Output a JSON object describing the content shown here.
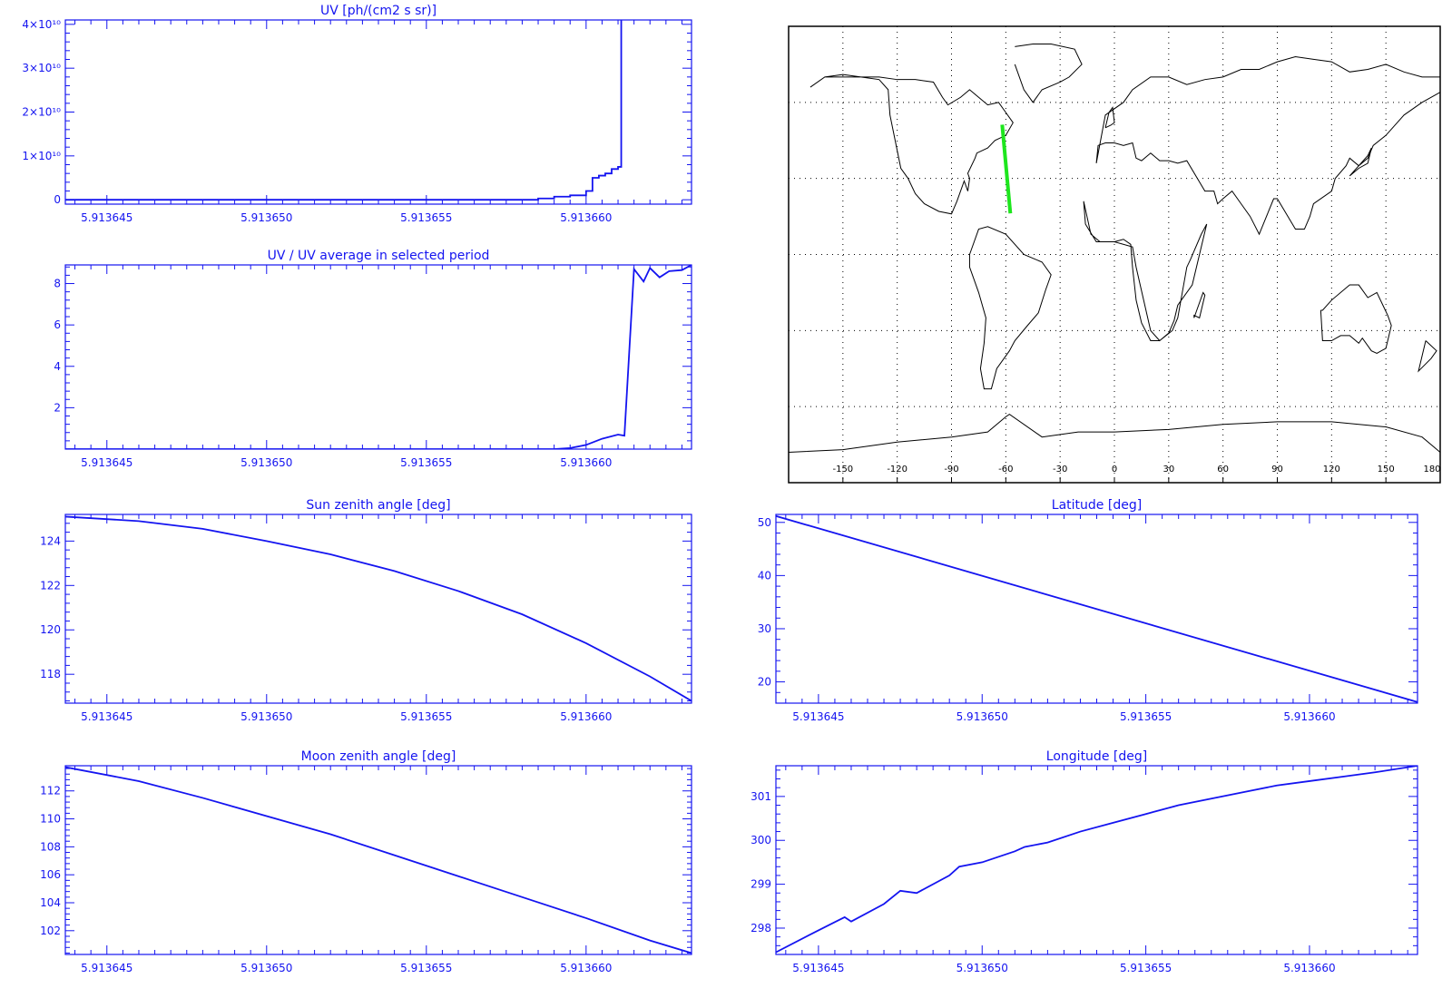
{
  "colors": {
    "plot": "#1414f0",
    "axes": "#1414f0",
    "map_line": "#000000",
    "track": "#1ee61e",
    "grid": "#000000"
  },
  "chart_data": [
    {
      "id": "uv",
      "type": "line",
      "title": "UV [ph/(cm2 s sr)]",
      "step": true,
      "xlim": [
        5.9136437,
        5.9136633
      ],
      "ylim": [
        -1000000000.0,
        41000000000.0
      ],
      "xticks": [
        5.913645,
        5.91365,
        5.913655,
        5.91366
      ],
      "xtick_labels": [
        "5.913645",
        "5.913650",
        "5.913655",
        "5.913660"
      ],
      "yticks": [
        0,
        10000000000.0,
        20000000000.0,
        30000000000.0,
        40000000000.0
      ],
      "ytick_labels": [
        "0",
        "1×10¹⁰",
        "2×10¹⁰",
        "3×10¹⁰",
        "4×10¹⁰"
      ],
      "x": [
        5.9136437,
        5.913658,
        5.9136585,
        5.913659,
        5.9136595,
        5.91366,
        5.9136602,
        5.9136604,
        5.9136606,
        5.9136608,
        5.913661,
        5.9136611,
        5.9136612
      ],
      "y": [
        0,
        0,
        300000000.0,
        700000000.0,
        1000000000.0,
        2000000000.0,
        5000000000.0,
        5500000000.0,
        6000000000.0,
        7000000000.0,
        7500000000.0,
        43000000000.0,
        43000000000.0
      ]
    },
    {
      "id": "uvratio",
      "type": "line",
      "title": "UV / UV average in selected period",
      "xlim": [
        5.9136437,
        5.9136633
      ],
      "ylim": [
        0,
        8.9
      ],
      "xticks": [
        5.913645,
        5.91365,
        5.913655,
        5.91366
      ],
      "xtick_labels": [
        "5.913645",
        "5.913650",
        "5.913655",
        "5.913660"
      ],
      "yticks": [
        2,
        4,
        6,
        8
      ],
      "ytick_labels": [
        "2",
        "4",
        "6",
        "8"
      ],
      "x": [
        5.9136437,
        5.913659,
        5.9136595,
        5.91366,
        5.9136605,
        5.913661,
        5.9136612,
        5.9136615,
        5.9136618,
        5.913662,
        5.9136623,
        5.9136626,
        5.913663,
        5.9136633
      ],
      "y": [
        0,
        0,
        0.05,
        0.2,
        0.5,
        0.7,
        0.65,
        8.7,
        8.1,
        8.75,
        8.3,
        8.6,
        8.65,
        8.9
      ]
    },
    {
      "id": "sun",
      "type": "line",
      "title": "Sun zenith angle [deg]",
      "xlim": [
        5.9136437,
        5.9136633
      ],
      "ylim": [
        116.7,
        125.2
      ],
      "xticks": [
        5.913645,
        5.91365,
        5.913655,
        5.91366
      ],
      "xtick_labels": [
        "5.913645",
        "5.913650",
        "5.913655",
        "5.913660"
      ],
      "yticks": [
        118,
        120,
        122,
        124
      ],
      "ytick_labels": [
        "118",
        "120",
        "122",
        "124"
      ],
      "x": [
        5.9136437,
        5.913646,
        5.913648,
        5.91365,
        5.913652,
        5.913654,
        5.913656,
        5.913658,
        5.91366,
        5.913662,
        5.9136633
      ],
      "y": [
        125.1,
        124.9,
        124.55,
        124.0,
        123.4,
        122.65,
        121.75,
        120.7,
        119.4,
        117.9,
        116.8
      ]
    },
    {
      "id": "moon",
      "type": "line",
      "title": "Moon zenith angle [deg]",
      "xlim": [
        5.9136437,
        5.9136633
      ],
      "ylim": [
        100.3,
        113.8
      ],
      "xticks": [
        5.913645,
        5.91365,
        5.913655,
        5.91366
      ],
      "xtick_labels": [
        "5.913645",
        "5.913650",
        "5.913655",
        "5.913660"
      ],
      "yticks": [
        102,
        104,
        106,
        108,
        110,
        112
      ],
      "ytick_labels": [
        "102",
        "104",
        "106",
        "108",
        "110",
        "112"
      ],
      "x": [
        5.9136437,
        5.913646,
        5.913648,
        5.91365,
        5.913652,
        5.913654,
        5.913656,
        5.913658,
        5.91366,
        5.913662,
        5.9136633
      ],
      "y": [
        113.7,
        112.7,
        111.5,
        110.2,
        108.9,
        107.4,
        105.9,
        104.4,
        102.9,
        101.3,
        100.4
      ]
    },
    {
      "id": "lat",
      "type": "line",
      "title": "Latitude [deg]",
      "xlim": [
        5.9136437,
        5.9136633
      ],
      "ylim": [
        16,
        51.5
      ],
      "xticks": [
        5.913645,
        5.91365,
        5.913655,
        5.91366
      ],
      "xtick_labels": [
        "5.913645",
        "5.913650",
        "5.913655",
        "5.913660"
      ],
      "yticks": [
        20,
        30,
        40,
        50
      ],
      "ytick_labels": [
        "20",
        "30",
        "40",
        "50"
      ],
      "x": [
        5.9136437,
        5.9136633
      ],
      "y": [
        51.2,
        16.2
      ]
    },
    {
      "id": "lon",
      "type": "line",
      "title": "Longitude [deg]",
      "xlim": [
        5.9136437,
        5.9136633
      ],
      "ylim": [
        297.4,
        301.7
      ],
      "xticks": [
        5.913645,
        5.91365,
        5.913655,
        5.91366
      ],
      "xtick_labels": [
        "5.913645",
        "5.913650",
        "5.913655",
        "5.913660"
      ],
      "yticks": [
        298,
        299,
        300,
        301
      ],
      "ytick_labels": [
        "298",
        "299",
        "300",
        "301"
      ],
      "x": [
        5.9136437,
        5.913645,
        5.9136458,
        5.913646,
        5.913647,
        5.9136475,
        5.913648,
        5.913649,
        5.9136493,
        5.91365,
        5.913651,
        5.9136513,
        5.913652,
        5.913653,
        5.913654,
        5.913655,
        5.913656,
        5.913657,
        5.913658,
        5.913659,
        5.91366,
        5.913661,
        5.913662,
        5.9136633
      ],
      "y": [
        297.45,
        297.95,
        298.25,
        298.15,
        298.55,
        298.85,
        298.8,
        299.2,
        299.4,
        299.5,
        299.75,
        299.85,
        299.95,
        300.2,
        300.4,
        300.6,
        300.8,
        300.95,
        301.1,
        301.25,
        301.35,
        301.45,
        301.55,
        301.7
      ]
    }
  ],
  "map": {
    "xlim": [
      -180,
      180
    ],
    "ylim": [
      -90,
      90
    ],
    "lon_ticks": [
      -150,
      -120,
      -90,
      -60,
      -30,
      0,
      30,
      60,
      90,
      120,
      150,
      180
    ],
    "lon_tick_labels": [
      "-150",
      "-120",
      "-90",
      "-60",
      "-30",
      "0",
      "30",
      "60",
      "90",
      "120",
      "150",
      "180"
    ],
    "lat_grid": [
      -60,
      -30,
      0,
      30,
      60
    ],
    "track": {
      "lon": [
        -62,
        -57.5
      ],
      "lat": [
        51.2,
        16.2
      ]
    },
    "coastlines": [
      {
        "name": "north-america",
        "lon": [
          -168,
          -160,
          -150,
          -140,
          -130,
          -125,
          -124,
          -122,
          -118,
          -114,
          -110,
          -105,
          -97,
          -90,
          -87,
          -83,
          -81,
          -80,
          -81,
          -77,
          -76,
          -70,
          -66,
          -60,
          -56,
          -60,
          -64,
          -70,
          -75,
          -80,
          -85,
          -92,
          -95,
          -100,
          -110,
          -120,
          -130,
          -140,
          -150,
          -160,
          -168
        ],
        "lat": [
          66,
          70,
          70,
          70,
          69,
          65,
          55,
          48,
          34,
          30,
          24,
          20,
          17,
          16,
          21,
          29,
          25,
          30,
          32,
          38,
          40,
          42,
          45,
          47,
          52,
          56,
          60,
          59,
          62,
          65,
          62,
          59,
          62,
          68,
          69,
          69,
          70,
          70,
          71,
          70,
          66
        ]
      },
      {
        "name": "greenland",
        "lon": [
          -55,
          -45,
          -35,
          -22,
          -18,
          -25,
          -30,
          -40,
          -45,
          -50,
          -55
        ],
        "lat": [
          82,
          83,
          83,
          81,
          75,
          70,
          68,
          65,
          60,
          65,
          75
        ]
      },
      {
        "name": "south-america",
        "lon": [
          -80,
          -75,
          -70,
          -60,
          -50,
          -40,
          -35,
          -38,
          -42,
          -48,
          -55,
          -58,
          -65,
          -68,
          -72,
          -74,
          -72,
          -71,
          -75,
          -80,
          -80
        ],
        "lat": [
          0,
          10,
          11,
          8,
          0,
          -3,
          -8,
          -14,
          -23,
          -28,
          -34,
          -38,
          -45,
          -53,
          -53,
          -45,
          -35,
          -25,
          -15,
          -5,
          0
        ]
      },
      {
        "name": "europe-asia",
        "lon": [
          -10,
          -9,
          -5,
          0,
          5,
          10,
          12,
          15,
          20,
          25,
          30,
          35,
          40,
          50,
          55,
          57,
          60,
          65,
          70,
          75,
          80,
          88,
          90,
          100,
          105,
          108,
          110,
          120,
          122,
          128,
          130,
          135,
          140,
          143,
          150,
          160,
          170,
          180,
          180,
          170,
          160,
          150,
          140,
          130,
          120,
          110,
          100,
          90,
          80,
          70,
          60,
          50,
          40,
          30,
          20,
          10,
          5,
          -5,
          -10
        ],
        "lat": [
          36,
          43,
          44,
          44,
          43,
          44,
          38,
          37,
          40,
          37,
          37,
          36,
          37,
          25,
          25,
          20,
          22,
          25,
          20,
          15,
          8,
          22,
          22,
          10,
          10,
          15,
          20,
          25,
          30,
          35,
          38,
          35,
          38,
          43,
          47,
          55,
          60,
          64,
          70,
          70,
          72,
          75,
          73,
          72,
          76,
          77,
          78,
          76,
          73,
          73,
          70,
          69,
          67,
          70,
          70,
          65,
          60,
          55,
          36
        ]
      },
      {
        "name": "africa",
        "lon": [
          -17,
          -16,
          -10,
          -5,
          0,
          10,
          12,
          20,
          25,
          30,
          33,
          35,
          43,
          51,
          48,
          42,
          40,
          35,
          32,
          25,
          20,
          15,
          12,
          10,
          9,
          5,
          0,
          -8,
          -13,
          -17
        ],
        "lat": [
          21,
          12,
          5,
          5,
          5,
          3,
          -5,
          -30,
          -34,
          -31,
          -26,
          -20,
          -12,
          12,
          8,
          -2,
          -5,
          -25,
          -30,
          -34,
          -34,
          -27,
          -18,
          -5,
          4,
          6,
          5,
          5,
          8,
          21
        ]
      },
      {
        "name": "australia",
        "lon": [
          114,
          115,
          120,
          125,
          130,
          135,
          137,
          142,
          145,
          150,
          153,
          151,
          145,
          140,
          135,
          130,
          120,
          115,
          114
        ],
        "lat": [
          -22,
          -34,
          -34,
          -32,
          -32,
          -35,
          -33,
          -38,
          -39,
          -37,
          -28,
          -24,
          -15,
          -17,
          -12,
          -12,
          -18,
          -22,
          -22
        ]
      },
      {
        "name": "antarctica",
        "lon": [
          -180,
          -150,
          -120,
          -90,
          -70,
          -60,
          -58,
          -40,
          -20,
          0,
          30,
          60,
          90,
          120,
          150,
          170,
          180
        ],
        "lat": [
          -78,
          -77,
          -74,
          -72,
          -70,
          -64,
          -63,
          -72,
          -70,
          -70,
          -69,
          -67,
          -66,
          -66,
          -68,
          -72,
          -78
        ]
      },
      {
        "name": "britain",
        "lon": [
          -5,
          -3,
          -1,
          0,
          -2,
          -5,
          -5
        ],
        "lat": [
          50,
          56,
          58,
          52,
          51,
          50,
          50
        ]
      },
      {
        "name": "japan",
        "lon": [
          130,
          135,
          140,
          142,
          140,
          135,
          130
        ],
        "lat": [
          31,
          34,
          36,
          42,
          39,
          35,
          31
        ]
      },
      {
        "name": "madagascar",
        "lon": [
          44,
          49,
          50,
          47,
          44,
          44
        ],
        "lat": [
          -25,
          -15,
          -16,
          -25,
          -24,
          -25
        ]
      },
      {
        "name": "new-zealand",
        "lon": [
          172,
          178,
          175,
          168,
          172
        ],
        "lat": [
          -34,
          -38,
          -41,
          -46,
          -34
        ]
      }
    ]
  }
}
